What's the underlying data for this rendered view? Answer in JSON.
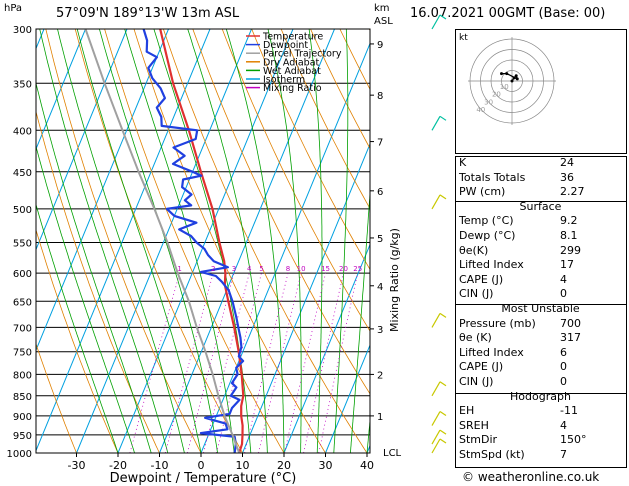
{
  "header": {
    "hpa_label": "hPa",
    "location": "57°09'N  189°13'W  13m  ASL",
    "km_label": "km",
    "asl_label": "ASL",
    "date": "16.07.2021  00GMT  (Base: 00)"
  },
  "legend": [
    {
      "label": "Temperature",
      "color": "#e03030"
    },
    {
      "label": "Dewpoint",
      "color": "#2040e0"
    },
    {
      "label": "Parcel Trajectory",
      "color": "#a0a0a0"
    },
    {
      "label": "Dry Adiabat",
      "color": "#e08000"
    },
    {
      "label": "Wet Adiabat",
      "color": "#00a000"
    },
    {
      "label": "Isotherm",
      "color": "#00a0e0"
    },
    {
      "label": "Mixing Ratio",
      "color": "#c000c0"
    }
  ],
  "chart_data": {
    "type": "line",
    "title": "57°09'N  189°13'W  13m  ASL",
    "xlabel": "Dewpoint / Temperature (°C)",
    "ylabel": "hPa",
    "right_ylabel": "Mixing Ratio (g/kg)",
    "xlim": [
      -35,
      40
    ],
    "ylim": [
      1000,
      300
    ],
    "x_ticks": [
      -30,
      -20,
      -10,
      0,
      10,
      20,
      30,
      40
    ],
    "pressure_levels": [
      300,
      350,
      400,
      450,
      500,
      550,
      600,
      650,
      700,
      750,
      800,
      850,
      900,
      950,
      1000
    ],
    "km_ticks": [
      {
        "km": "1",
        "p": 900
      },
      {
        "km": "2",
        "p": 800
      },
      {
        "km": "3",
        "p": 703
      },
      {
        "km": "4",
        "p": 622
      },
      {
        "km": "5",
        "p": 543
      },
      {
        "km": "6",
        "p": 475
      },
      {
        "km": "7",
        "p": 413
      },
      {
        "km": "8",
        "p": 362
      },
      {
        "km": "9",
        "p": 313
      }
    ],
    "lcl_label": "LCL",
    "lcl_p": 1000,
    "mixing_ratio_labels": [
      "1",
      "2",
      "3",
      "4",
      "5",
      "8",
      "10",
      "15",
      "20",
      "25"
    ],
    "series": [
      {
        "name": "Temperature",
        "color": "#e03030",
        "p": [
          1000,
          975,
          950,
          925,
          900,
          875,
          850,
          800,
          750,
          700,
          650,
          620,
          600,
          580,
          550,
          500,
          450,
          400,
          350,
          300
        ],
        "t": [
          9.2,
          9.0,
          8.2,
          7.3,
          6.0,
          5.0,
          4.5,
          2.0,
          -1.0,
          -4.5,
          -8.5,
          -11.0,
          -12.0,
          -13.5,
          -16.5,
          -21.5,
          -28.0,
          -35.0,
          -43.5,
          -52.0
        ]
      },
      {
        "name": "Dewpoint",
        "color": "#2040e0",
        "p": [
          1000,
          975,
          955,
          945,
          935,
          920,
          905,
          895,
          880,
          860,
          850,
          830,
          820,
          800,
          785,
          770,
          760,
          740,
          720,
          700,
          680,
          650,
          630,
          615,
          605,
          598,
          590,
          580,
          570,
          560,
          550,
          540,
          530,
          520,
          510,
          500,
          495,
          488,
          480,
          470,
          460,
          455,
          450,
          440,
          430,
          420,
          410,
          400,
          395,
          385,
          375,
          365,
          355,
          345,
          335,
          325,
          320,
          310,
          300
        ],
        "t": [
          8.1,
          7.5,
          6.5,
          -2.0,
          4.0,
          3.0,
          -2.5,
          3.0,
          3.0,
          4.0,
          1.5,
          2.0,
          0.5,
          1.0,
          0.0,
          1.0,
          -0.5,
          -0.8,
          -2.0,
          -3.5,
          -5.0,
          -7.5,
          -9.5,
          -12.0,
          -14.0,
          -18.0,
          -12.0,
          -16.0,
          -18.0,
          -19.5,
          -22.0,
          -24.0,
          -27.5,
          -24.0,
          -30.0,
          -32.5,
          -27.0,
          -29.0,
          -28.0,
          -31.0,
          -31.5,
          -27.5,
          -30.0,
          -35.5,
          -33.5,
          -37.0,
          -32.5,
          -33.0,
          -42.0,
          -43.0,
          -45.0,
          -44.0,
          -46.0,
          -49.0,
          -51.0,
          -50.0,
          -53.0,
          -54.0,
          -56.0
        ]
      },
      {
        "name": "Parcel Trajectory",
        "color": "#a0a0a0",
        "p": [
          1000,
          950,
          900,
          850,
          800,
          750,
          700,
          650,
          600,
          550,
          500,
          450,
          400,
          350,
          300
        ],
        "t": [
          9.2,
          5.8,
          2.0,
          -1.5,
          -5.0,
          -9.0,
          -13.5,
          -18.0,
          -23.5,
          -29.0,
          -35.5,
          -43.0,
          -51.0,
          -60.0,
          -70.0
        ]
      }
    ],
    "wind_barbs": [
      {
        "p": 1000,
        "color": "#c8c800"
      },
      {
        "p": 975,
        "color": "#c8c800"
      },
      {
        "p": 925,
        "color": "#c8c800"
      },
      {
        "p": 850,
        "color": "#c8c800"
      },
      {
        "p": 700,
        "color": "#c8c800"
      },
      {
        "p": 500,
        "color": "#c8c800"
      },
      {
        "p": 400,
        "color": "#00c0a0"
      },
      {
        "p": 300,
        "color": "#00c0a0"
      }
    ],
    "hodograph": {
      "unit_label": "kt",
      "ring_labels": [
        "10",
        "20",
        "30",
        "40"
      ],
      "points": [
        [
          0,
          0
        ],
        [
          2,
          3
        ],
        [
          4,
          5
        ],
        [
          5,
          2
        ],
        [
          -5,
          7
        ],
        [
          -10,
          7
        ]
      ]
    }
  },
  "indices": {
    "top": [
      {
        "label": "K",
        "value": "24"
      },
      {
        "label": "Totals Totals",
        "value": "36"
      },
      {
        "label": "PW (cm)",
        "value": "2.27"
      }
    ],
    "surface_title": "Surface",
    "surface": [
      {
        "label": "Temp (°C)",
        "value": "9.2"
      },
      {
        "label": "Dewp (°C)",
        "value": "8.1"
      },
      {
        "label": "θe(K)",
        "value": "299"
      },
      {
        "label": "Lifted Index",
        "value": "17"
      },
      {
        "label": "CAPE (J)",
        "value": "4"
      },
      {
        "label": "CIN (J)",
        "value": "0"
      }
    ],
    "mu_title": "Most Unstable",
    "most_unstable": [
      {
        "label": "Pressure (mb)",
        "value": "700"
      },
      {
        "label": "θe (K)",
        "value": "317"
      },
      {
        "label": "Lifted Index",
        "value": "6"
      },
      {
        "label": "CAPE (J)",
        "value": "0"
      },
      {
        "label": "CIN (J)",
        "value": "0"
      }
    ],
    "hodo_title": "Hodograph",
    "hodograph": [
      {
        "label": "EH",
        "value": "-11"
      },
      {
        "label": "SREH",
        "value": "4"
      },
      {
        "label": "StmDir",
        "value": "150°"
      },
      {
        "label": "StmSpd (kt)",
        "value": "7"
      }
    ]
  },
  "footer": {
    "credit": "© weatheronline.co.uk"
  }
}
